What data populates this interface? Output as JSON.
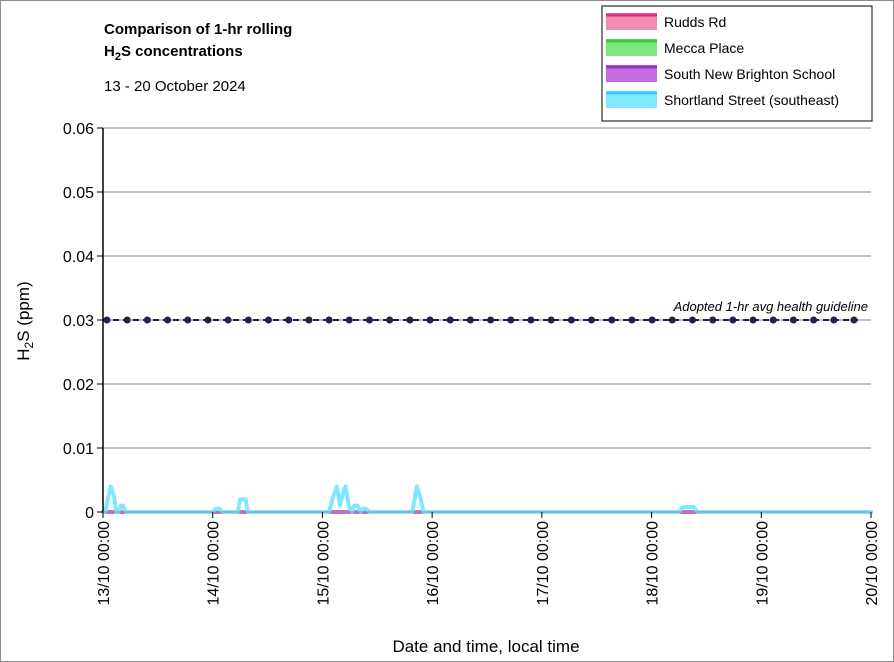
{
  "chart_data": {
    "type": "line",
    "title_line1": "Comparison of 1-hr rolling",
    "title_line2_prefix": "H",
    "title_line2_sub": "2",
    "title_line2_suffix": "S concentrations",
    "subtitle": "13 - 20 October 2024",
    "xlabel": "Date and time, local time",
    "ylabel_prefix": "H",
    "ylabel_sub": "2",
    "ylabel_suffix": "S (ppm)",
    "ylim": [
      0,
      0.06
    ],
    "y_ticks": [
      "0",
      "0.01",
      "0.02",
      "0.03",
      "0.04",
      "0.05",
      "0.06"
    ],
    "y_tick_values": [
      0,
      0.01,
      0.02,
      0.03,
      0.04,
      0.05,
      0.06
    ],
    "x_ticks": [
      "13/10 00:00",
      "14/10 00:00",
      "15/10 00:00",
      "16/10 00:00",
      "17/10 00:00",
      "18/10 00:00",
      "19/10 00:00",
      "20/10 00:00"
    ],
    "grid": "horizontal",
    "legend_position": "top-right",
    "series": [
      {
        "name": "Rudds Rd",
        "color": "#e8287a",
        "fill": "#f08cb4",
        "points": [
          [
            0,
            0
          ],
          [
            7,
            0
          ]
        ]
      },
      {
        "name": "Mecca Place",
        "color": "#33cc33",
        "fill": "#7fe57f",
        "points": [
          [
            0,
            0
          ],
          [
            7,
            0
          ]
        ]
      },
      {
        "name": "South New Brighton School",
        "color": "#9933cc",
        "fill": "#c46be0",
        "points": [
          [
            0,
            0
          ],
          [
            7,
            0
          ]
        ]
      },
      {
        "name": "Shortland Street (southeast)",
        "color": "#33ccee",
        "fill": "#7fe8ff",
        "points": [
          [
            0,
            0
          ],
          [
            0.02,
            0
          ],
          [
            0.05,
            0.0025
          ],
          [
            0.07,
            0.004
          ],
          [
            0.1,
            0.0025
          ],
          [
            0.12,
            0
          ],
          [
            0.14,
            0
          ],
          [
            0.16,
            0.001
          ],
          [
            0.18,
            0.001
          ],
          [
            0.21,
            0
          ],
          [
            0.3,
            0
          ],
          [
            1.0,
            0
          ],
          [
            1.03,
            0.0005
          ],
          [
            1.06,
            0.0005
          ],
          [
            1.09,
            0
          ],
          [
            1.23,
            0
          ],
          [
            1.25,
            0.002
          ],
          [
            1.3,
            0.002
          ],
          [
            1.32,
            0
          ],
          [
            1.4,
            0
          ],
          [
            2.06,
            0
          ],
          [
            2.1,
            0.0025
          ],
          [
            2.13,
            0.004
          ],
          [
            2.16,
            0.001
          ],
          [
            2.18,
            0.0025
          ],
          [
            2.21,
            0.004
          ],
          [
            2.24,
            0.001
          ],
          [
            2.27,
            0
          ],
          [
            2.29,
            0.001
          ],
          [
            2.32,
            0.001
          ],
          [
            2.35,
            0
          ],
          [
            2.37,
            0.0005
          ],
          [
            2.4,
            0.0005
          ],
          [
            2.43,
            0
          ],
          [
            2.5,
            0
          ],
          [
            2.82,
            0
          ],
          [
            2.86,
            0.004
          ],
          [
            2.89,
            0.0025
          ],
          [
            2.92,
            0
          ],
          [
            3.0,
            0
          ],
          [
            5.25,
            0
          ],
          [
            5.28,
            0.0007
          ],
          [
            5.33,
            0.0008
          ],
          [
            5.38,
            0.0008
          ],
          [
            5.42,
            0
          ],
          [
            5.5,
            0
          ],
          [
            7,
            0
          ]
        ]
      }
    ],
    "guideline": {
      "label": "Adopted 1-hr avg health guideline",
      "value": 0.03,
      "color": "#2b1b4e"
    }
  }
}
